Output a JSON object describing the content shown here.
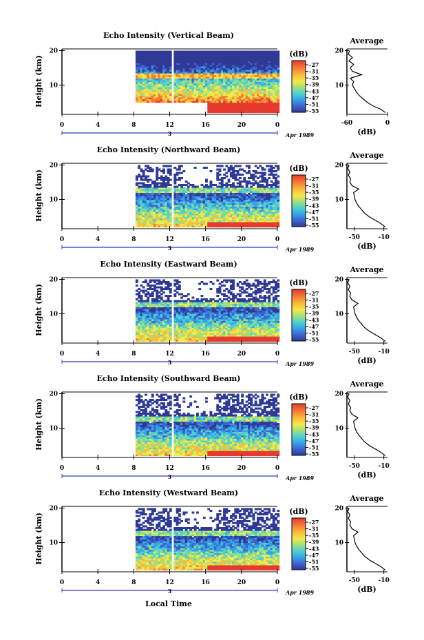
{
  "chart_data": [
    {
      "type": "heatmap",
      "title": "Echo Intensity (Vertical Beam)",
      "ylabel": "Height (km)",
      "xlabel": "",
      "x_ticks": [
        "0",
        "4",
        "8",
        "12",
        "16",
        "20",
        "0"
      ],
      "y_ticks": [
        "20",
        "10"
      ],
      "xlim": [
        0,
        24
      ],
      "ylim": [
        1.5,
        20.5
      ],
      "date_marker": "3",
      "date_label": "Apr 1989",
      "colorbar": {
        "title": "(dB)",
        "ticks": [
          "-27",
          "-31",
          "-35",
          "-39",
          "-43",
          "-47",
          "-51",
          "-55"
        ]
      },
      "data_window_hours": [
        8,
        24
      ],
      "data_gap_hours": [
        12,
        12.3
      ],
      "profile": {
        "title": "Average",
        "xlabel": "(dB)",
        "x_ticks": [
          "-60",
          "0"
        ],
        "xlim": [
          -60,
          0
        ],
        "y_ticks": [
          "20",
          "10"
        ],
        "ylim": [
          1.5,
          20.5
        ],
        "heights": [
          2,
          3,
          4,
          5,
          6,
          7,
          8,
          9,
          10,
          11,
          12,
          13,
          14,
          15,
          16,
          17,
          18,
          19,
          20
        ],
        "values": [
          -3,
          -10,
          -22,
          -30,
          -36,
          -42,
          -46,
          -49,
          -52,
          -50,
          -55,
          -38,
          -52,
          -55,
          -50,
          -57,
          -52,
          -58,
          -56
        ]
      }
    },
    {
      "type": "heatmap",
      "title": "Echo Intensity (Northward Beam)",
      "ylabel": "Height (km)",
      "xlabel": "",
      "x_ticks": [
        "0",
        "4",
        "8",
        "12",
        "16",
        "20",
        "0"
      ],
      "y_ticks": [
        "20",
        "10"
      ],
      "xlim": [
        0,
        24
      ],
      "ylim": [
        1.5,
        20.5
      ],
      "date_marker": "3",
      "date_label": "Apr 1989",
      "colorbar": {
        "title": "(dB)",
        "ticks": [
          "-27",
          "-31",
          "-35",
          "-39",
          "-43",
          "-47",
          "-51",
          "-55"
        ]
      },
      "data_window_hours": [
        8,
        24
      ],
      "data_gap_hours": [
        12,
        12.3
      ],
      "profile": {
        "title": "Average",
        "xlabel": "(dB)",
        "x_ticks": [
          "-50",
          "-10"
        ],
        "xlim": [
          -60,
          -5
        ],
        "y_ticks": [
          "20",
          "10"
        ],
        "ylim": [
          1.5,
          20.5
        ],
        "heights": [
          2,
          3,
          4,
          5,
          6,
          7,
          8,
          9,
          10,
          11,
          12,
          13,
          14,
          15,
          16,
          17,
          18,
          19,
          20
        ],
        "values": [
          -8,
          -14,
          -22,
          -30,
          -36,
          -40,
          -44,
          -47,
          -49,
          -50,
          -51,
          -44,
          -53,
          -56,
          -55,
          -58,
          -56,
          -59,
          -57
        ]
      }
    },
    {
      "type": "heatmap",
      "title": "Echo Intensity (Eastward Beam)",
      "ylabel": "Height (km)",
      "xlabel": "",
      "x_ticks": [
        "0",
        "4",
        "8",
        "12",
        "16",
        "20",
        "0"
      ],
      "y_ticks": [
        "20",
        "10"
      ],
      "xlim": [
        0,
        24
      ],
      "ylim": [
        1.5,
        20.5
      ],
      "date_marker": "3",
      "date_label": "Apr 1989",
      "colorbar": {
        "title": "(dB)",
        "ticks": [
          "-27",
          "-31",
          "-35",
          "-39",
          "-43",
          "-47",
          "-51",
          "-55"
        ]
      },
      "data_window_hours": [
        8,
        24
      ],
      "data_gap_hours": [
        12,
        12.3
      ],
      "profile": {
        "title": "Average",
        "xlabel": "(dB)",
        "x_ticks": [
          "-50",
          "-10"
        ],
        "xlim": [
          -60,
          -5
        ],
        "y_ticks": [
          "20",
          "10"
        ],
        "ylim": [
          1.5,
          20.5
        ],
        "heights": [
          2,
          3,
          4,
          5,
          6,
          7,
          8,
          9,
          10,
          11,
          12,
          13,
          14,
          15,
          16,
          17,
          18,
          19,
          20
        ],
        "values": [
          -8,
          -14,
          -22,
          -30,
          -36,
          -40,
          -44,
          -47,
          -49,
          -50,
          -51,
          -45,
          -53,
          -56,
          -55,
          -58,
          -56,
          -59,
          -57
        ]
      }
    },
    {
      "type": "heatmap",
      "title": "Echo Intensity (Southward Beam)",
      "ylabel": "Height (km)",
      "xlabel": "",
      "x_ticks": [
        "0",
        "4",
        "8",
        "12",
        "16",
        "20",
        "0"
      ],
      "y_ticks": [
        "20",
        "10"
      ],
      "xlim": [
        0,
        24
      ],
      "ylim": [
        1.5,
        20.5
      ],
      "date_marker": "3",
      "date_label": "Apr 1989",
      "colorbar": {
        "title": "(dB)",
        "ticks": [
          "-27",
          "-31",
          "-35",
          "-39",
          "-43",
          "-47",
          "-51",
          "-55"
        ]
      },
      "data_window_hours": [
        8,
        24
      ],
      "data_gap_hours": [
        12,
        12.3
      ],
      "profile": {
        "title": "Average",
        "xlabel": "(dB)",
        "x_ticks": [
          "-50",
          "-10"
        ],
        "xlim": [
          -60,
          -5
        ],
        "y_ticks": [
          "20",
          "10"
        ],
        "ylim": [
          1.5,
          20.5
        ],
        "heights": [
          2,
          3,
          4,
          5,
          6,
          7,
          8,
          9,
          10,
          11,
          12,
          13,
          14,
          15,
          16,
          17,
          18,
          19,
          20
        ],
        "values": [
          -8,
          -14,
          -22,
          -30,
          -36,
          -40,
          -44,
          -47,
          -49,
          -50,
          -51,
          -45,
          -53,
          -56,
          -55,
          -58,
          -56,
          -59,
          -57
        ]
      }
    },
    {
      "type": "heatmap",
      "title": "Echo Intensity (Westward Beam)",
      "ylabel": "Height (km)",
      "xlabel": "Local Time",
      "x_ticks": [
        "0",
        "4",
        "8",
        "12",
        "16",
        "20",
        "0"
      ],
      "y_ticks": [
        "20",
        "10"
      ],
      "xlim": [
        0,
        24
      ],
      "ylim": [
        1.5,
        20.5
      ],
      "date_marker": "3",
      "date_label": "Apr 1989",
      "colorbar": {
        "title": "(dB)",
        "ticks": [
          "-27",
          "-31",
          "-35",
          "-39",
          "-43",
          "-47",
          "-51",
          "-55"
        ]
      },
      "data_window_hours": [
        8,
        24
      ],
      "data_gap_hours": [
        12,
        12.3
      ],
      "profile": {
        "title": "Average",
        "xlabel": "(dB)",
        "x_ticks": [
          "-50",
          "-10"
        ],
        "xlim": [
          -60,
          -5
        ],
        "y_ticks": [
          "20",
          "10"
        ],
        "ylim": [
          1.5,
          20.5
        ],
        "heights": [
          2,
          3,
          4,
          5,
          6,
          7,
          8,
          9,
          10,
          11,
          12,
          13,
          14,
          15,
          16,
          17,
          18,
          19,
          20
        ],
        "values": [
          -8,
          -14,
          -22,
          -30,
          -36,
          -40,
          -44,
          -47,
          -49,
          -50,
          -51,
          -45,
          -53,
          -56,
          -55,
          -58,
          -56,
          -59,
          -57
        ]
      }
    }
  ],
  "colors": {
    "colorscale": [
      "#e73a2e",
      "#f47a36",
      "#fbbb3c",
      "#f2e94a",
      "#9fe07a",
      "#4cd0d4",
      "#34a3e6",
      "#3f63cf",
      "#2e3a96"
    ],
    "axis": "#000000",
    "profile_line": "#000000"
  }
}
